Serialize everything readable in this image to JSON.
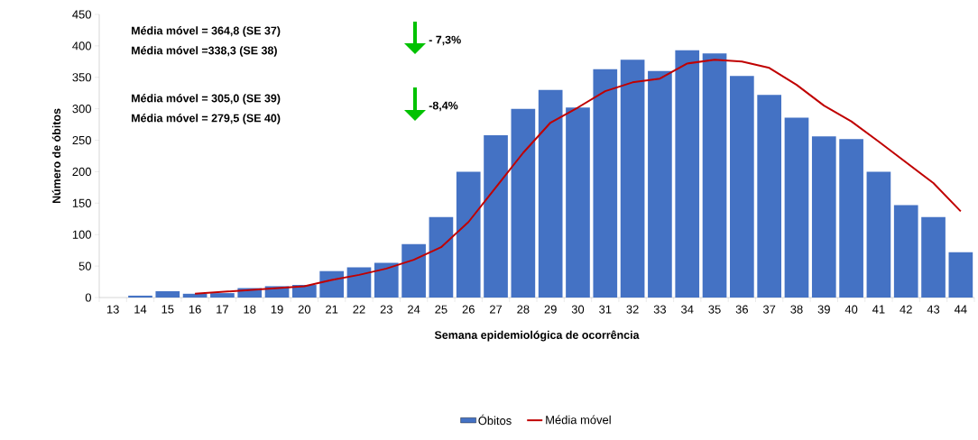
{
  "chart_data": {
    "type": "bar",
    "xlabel": "Semana epidemiológica  de ocorrência",
    "ylabel": "Número de óbitos",
    "categories": [
      "13",
      "14",
      "15",
      "16",
      "17",
      "18",
      "19",
      "20",
      "21",
      "22",
      "23",
      "24",
      "25",
      "26",
      "27",
      "28",
      "29",
      "30",
      "31",
      "32",
      "33",
      "34",
      "35",
      "36",
      "37",
      "38",
      "39",
      "40",
      "41",
      "42",
      "43",
      "44"
    ],
    "series": [
      {
        "name": "Óbitos",
        "color": "#4472c4",
        "values": [
          0,
          3,
          10,
          6,
          7,
          15,
          18,
          20,
          42,
          48,
          55,
          85,
          128,
          200,
          258,
          300,
          330,
          302,
          363,
          378,
          360,
          393,
          388,
          352,
          322,
          286,
          256,
          252,
          200,
          147,
          128,
          72
        ]
      },
      {
        "name": "Média móvel",
        "type": "line",
        "color": "#c00000",
        "values": [
          null,
          null,
          null,
          6,
          9,
          12,
          15,
          18,
          28,
          36,
          46,
          60,
          80,
          120,
          175,
          230,
          278,
          302,
          328,
          342,
          348,
          372,
          378,
          375,
          365,
          338,
          305,
          280,
          248,
          215,
          182,
          137
        ]
      }
    ],
    "ylim": [
      0,
      450
    ],
    "yticks": [
      0,
      50,
      100,
      150,
      200,
      250,
      300,
      350,
      400,
      450
    ],
    "grid": false,
    "legend": "bottom",
    "annotations": [
      "Média móvel = 364,8 (SE 37)",
      "Média móvel =338,3 (SE 38)",
      "- 7,3%",
      "Média móvel = 305,0  (SE 39)",
      "Média móvel = 279,5  (SE 40)",
      "-8,4%"
    ]
  }
}
